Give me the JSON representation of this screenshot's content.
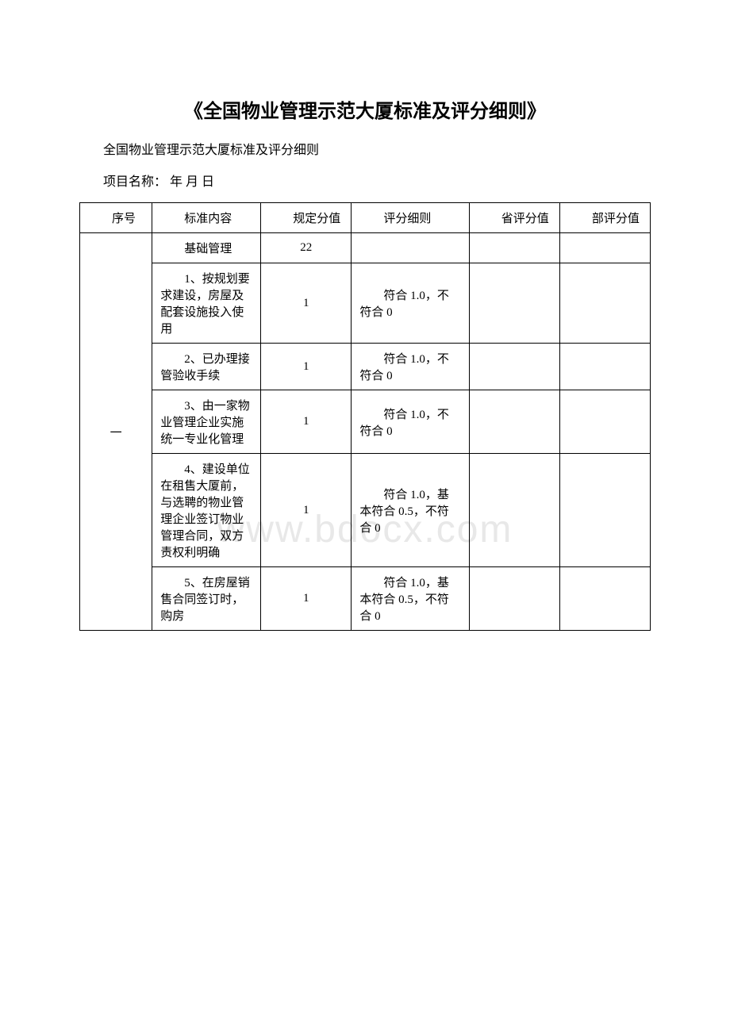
{
  "document": {
    "title": "《全国物业管理示范大厦标准及评分细则》",
    "subtitle": "全国物业管理示范大厦标准及评分细则",
    "meta": "项目名称：  年 月 日",
    "watermark": "www.bdocx.com"
  },
  "table": {
    "headers": {
      "seq": "序号",
      "content": "标准内容",
      "score": "规定分值",
      "rule": "评分细则",
      "prov": "省评分值",
      "dept": "部评分值"
    },
    "section_label": "一",
    "rows": [
      {
        "content": "基础管理",
        "score": "22",
        "rule": "",
        "prov": "",
        "dept": ""
      },
      {
        "content": "1、按规划要求建设，房屋及配套设施投入使用",
        "score": "1",
        "rule": "符合 1.0，不符合 0",
        "prov": "",
        "dept": ""
      },
      {
        "content": "2、已办理接管验收手续",
        "score": "1",
        "rule": "符合 1.0，不符合 0",
        "prov": "",
        "dept": ""
      },
      {
        "content": "3、由一家物业管理企业实施统一专业化管理",
        "score": "1",
        "rule": "符合 1.0，不符合 0",
        "prov": "",
        "dept": ""
      },
      {
        "content": "4、建设单位在租售大厦前，与选聘的物业管理企业签订物业管理合同，双方责权利明确",
        "score": "1",
        "rule": "符合 1.0，基本符合 0.5，不符合 0",
        "prov": "",
        "dept": ""
      },
      {
        "content": "5、在房屋销售合同签订时，购房",
        "score": "1",
        "rule": "符合 1.0，基本符合 0.5，不符合 0",
        "prov": "",
        "dept": ""
      }
    ]
  }
}
